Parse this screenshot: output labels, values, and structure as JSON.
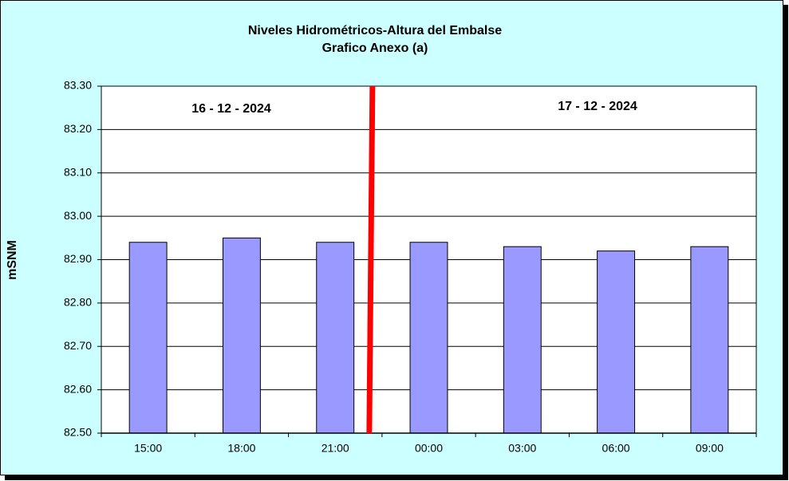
{
  "chart_data": {
    "type": "bar",
    "title": "Niveles Hidrométricos-Altura del Embalse",
    "subtitle": "Grafico Anexo (a)",
    "y_label": "mSNM",
    "annotations": [
      "16 - 12 - 2024",
      "17 - 12 - 2024"
    ],
    "categories": [
      "15:00",
      "18:00",
      "21:00",
      "00:00",
      "03:00",
      "06:00",
      "09:00"
    ],
    "values": [
      82.94,
      82.95,
      82.94,
      82.94,
      82.93,
      82.92,
      82.93
    ],
    "color": "#9999ff",
    "ylim": [
      82.5,
      83.3
    ],
    "yticks": [
      {
        "value": 82.5,
        "label": "82.50"
      },
      {
        "value": 82.6,
        "label": "82.60"
      },
      {
        "value": 82.7,
        "label": "82.70"
      },
      {
        "value": 82.8,
        "label": "82.80"
      },
      {
        "value": 82.9,
        "label": "82.90"
      },
      {
        "value": 83.0,
        "label": "83.00"
      },
      {
        "value": 83.1,
        "label": "83.10"
      },
      {
        "value": 83.2,
        "label": "83.20"
      },
      {
        "value": 83.3,
        "label": "83.30"
      }
    ],
    "grid": true
  }
}
